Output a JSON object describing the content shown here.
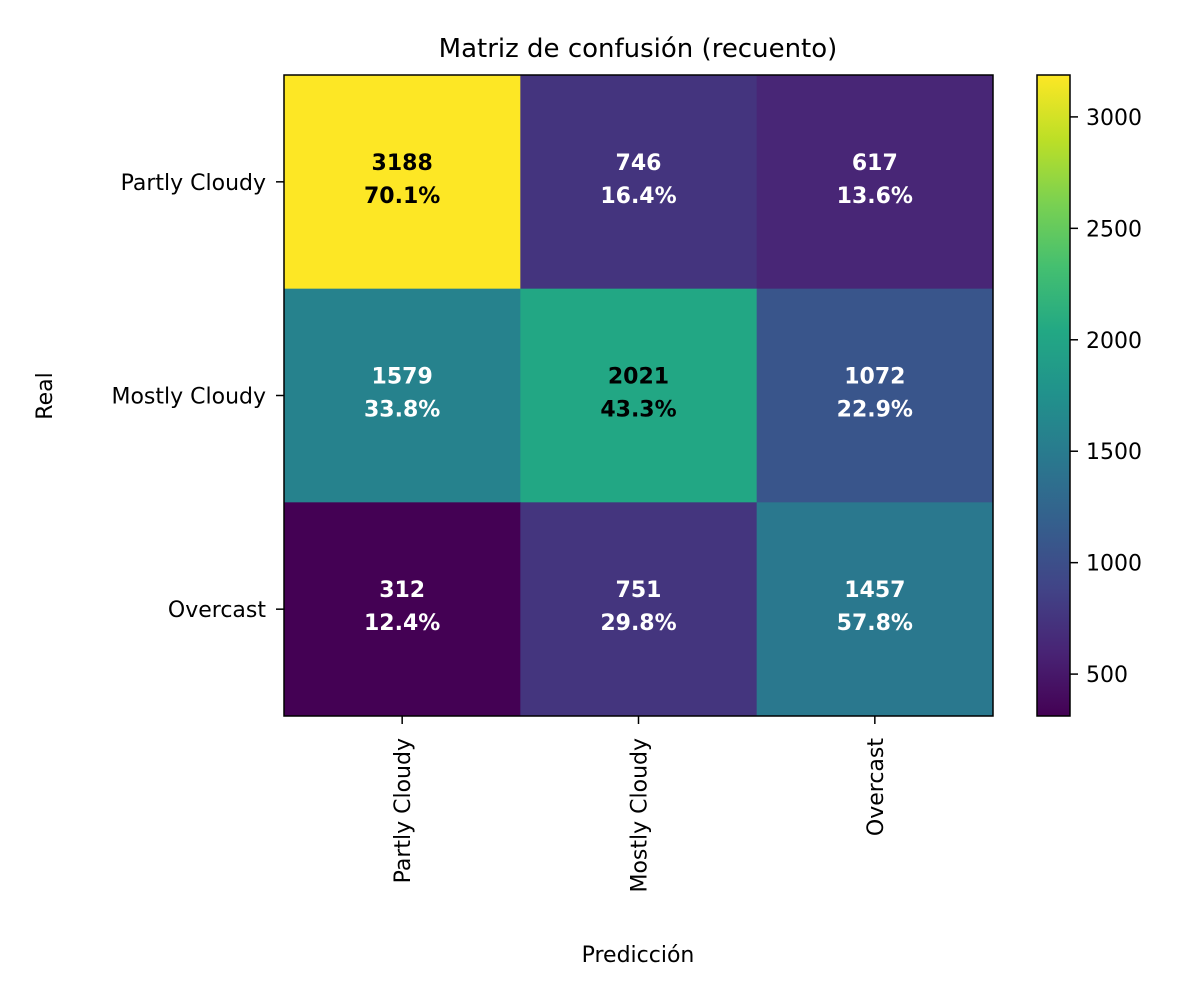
{
  "chart_data": {
    "type": "heatmap",
    "title": "Matriz de confusión (recuento)",
    "xlabel": "Predicción",
    "ylabel": "Real",
    "x_categories": [
      "Partly Cloudy",
      "Mostly Cloudy",
      "Overcast"
    ],
    "y_categories": [
      "Partly Cloudy",
      "Mostly Cloudy",
      "Overcast"
    ],
    "values": [
      [
        3188,
        746,
        617
      ],
      [
        1579,
        2021,
        1072
      ],
      [
        312,
        751,
        1457
      ]
    ],
    "percent_labels": [
      [
        "70.1%",
        "16.4%",
        "13.6%"
      ],
      [
        "33.8%",
        "43.3%",
        "22.9%"
      ],
      [
        "12.4%",
        "29.8%",
        "57.8%"
      ]
    ],
    "colormap": "viridis",
    "color_range": [
      312,
      3188
    ],
    "colorbar_ticks": [
      500,
      1000,
      1500,
      2000,
      2500,
      3000
    ],
    "text_colors": {
      "light": "#ffffff",
      "dark": "#000000"
    }
  }
}
